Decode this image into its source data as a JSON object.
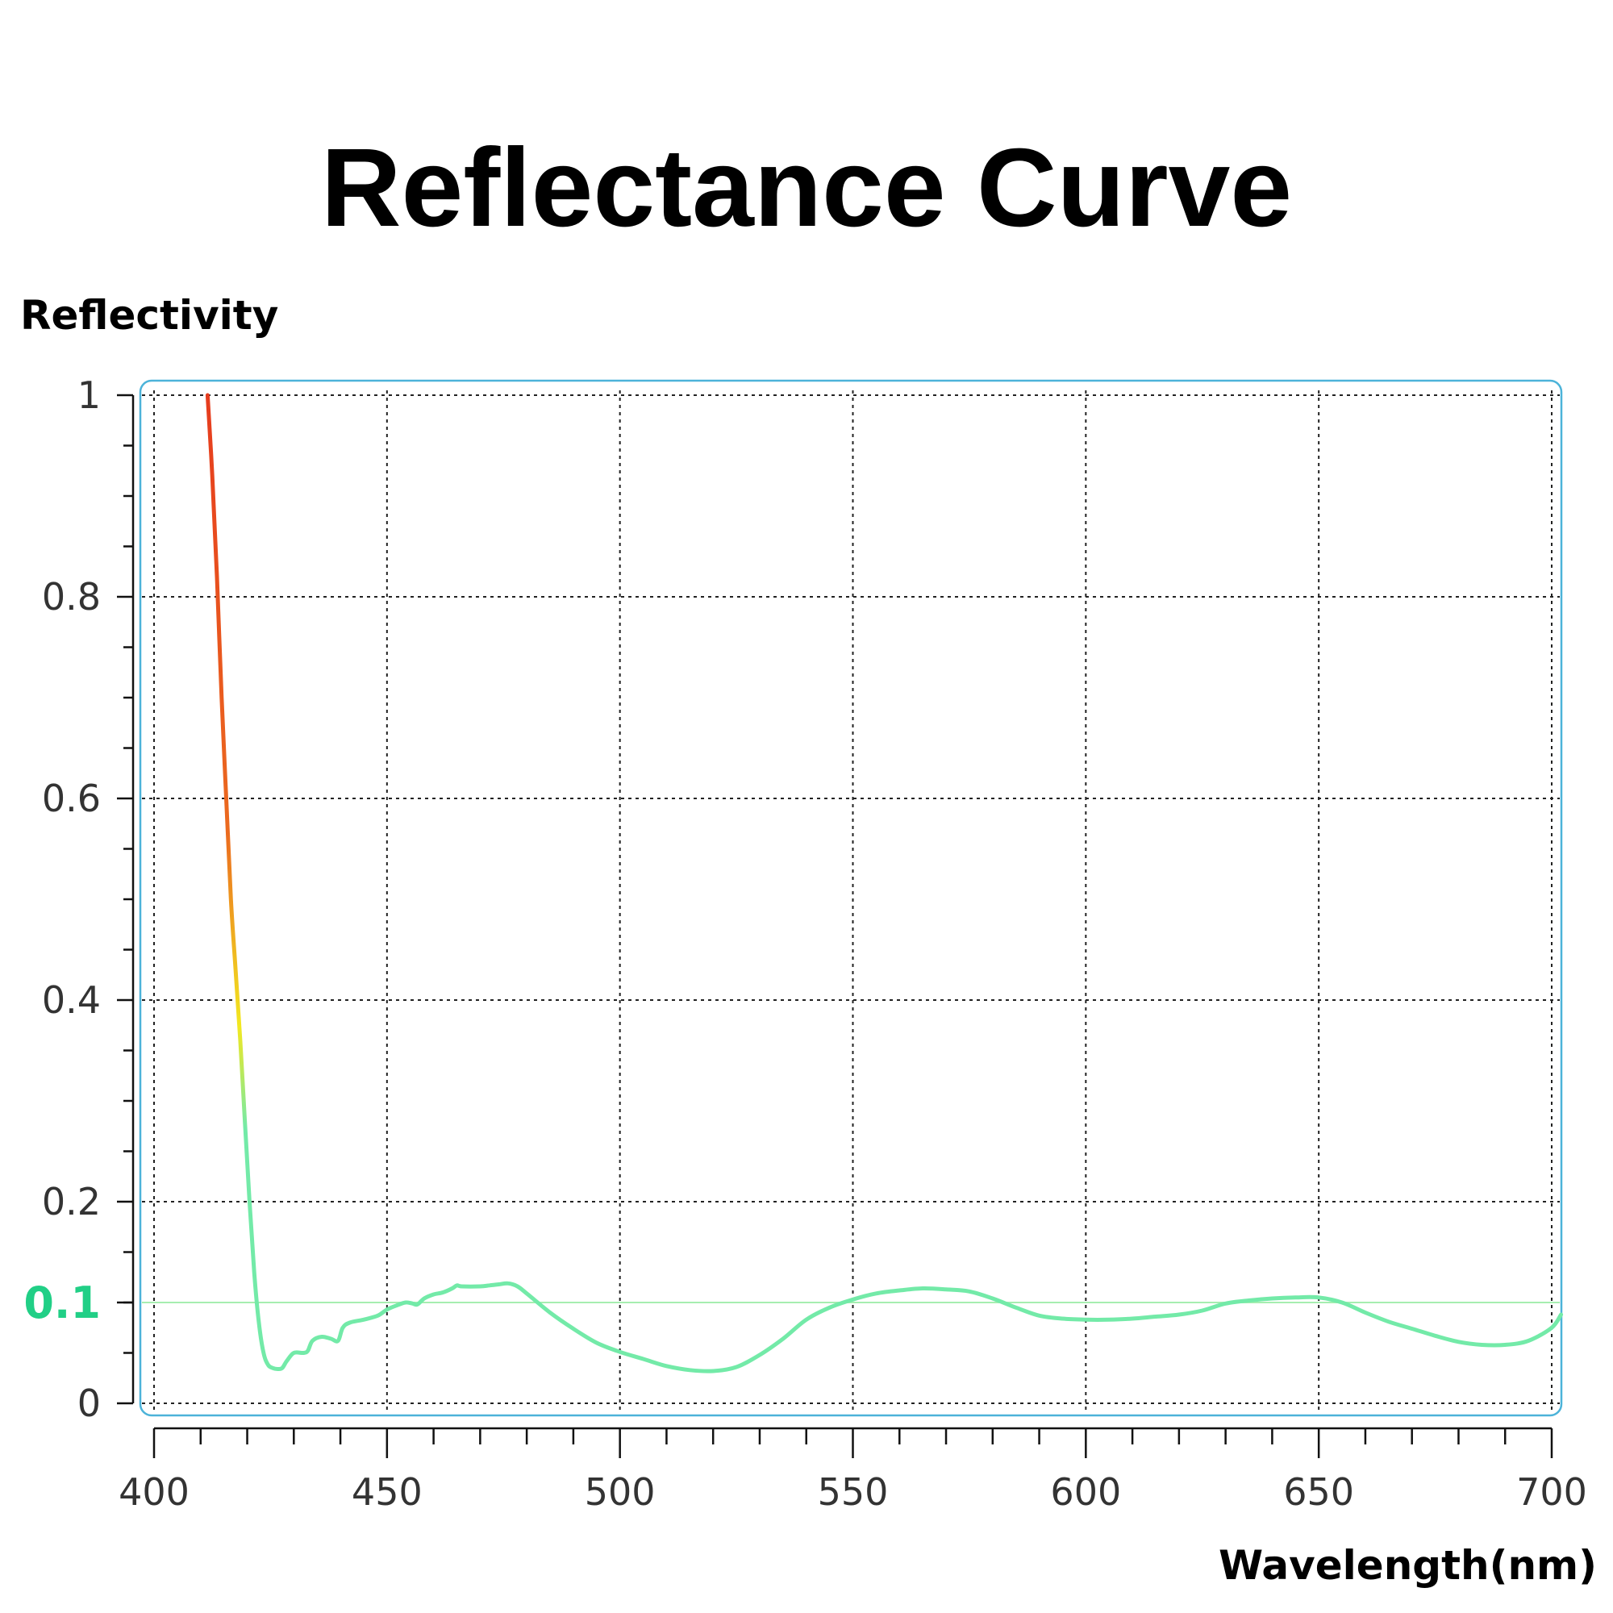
{
  "chart_data": {
    "type": "line",
    "title": "Reflectance Curve",
    "xlabel": "Wavelength(nm)",
    "ylabel": "Reflectivity",
    "xlim": [
      400,
      700
    ],
    "ylim": [
      0,
      1
    ],
    "x_ticks": [
      "400",
      "450",
      "500",
      "550",
      "600",
      "650",
      "700"
    ],
    "x_tick_values": [
      400,
      450,
      500,
      550,
      600,
      650,
      700
    ],
    "y_ticks": [
      "0",
      "0.2",
      "0.4",
      "0.6",
      "0.8",
      "1"
    ],
    "y_tick_values": [
      0,
      0.2,
      0.4,
      0.6,
      0.8,
      1
    ],
    "grid": true,
    "reference_line": {
      "label": "0.1",
      "value": 0.1,
      "color": "#a6eeb0",
      "label_color": "#21cf86"
    },
    "colors": {
      "frame": "#4cb3d9",
      "curve_high": "#e63b1e",
      "curve_mid": "#f2e820",
      "curve_low": "#73eaa8"
    },
    "series": [
      {
        "x": [
          411.5,
          412.5,
          413.5,
          414.5,
          415.5,
          416.5,
          417.5,
          418.5,
          419.5,
          420.5,
          421.5,
          422.5,
          423.5,
          424.5,
          425.5,
          426.5,
          427.5,
          428.5,
          430,
          432,
          433,
          434,
          436,
          438,
          439.5,
          440.5,
          442,
          445,
          448,
          450,
          452,
          454,
          455.5,
          456.5,
          458,
          460,
          462,
          464,
          465,
          466,
          470,
          472,
          474,
          476,
          478,
          480,
          485,
          490,
          495,
          500,
          505,
          510,
          515,
          520,
          525,
          530,
          535,
          540,
          545,
          550,
          555,
          560,
          565,
          570,
          575,
          580,
          585,
          590,
          595,
          600,
          605,
          610,
          615,
          620,
          625,
          630,
          635,
          640,
          645,
          650,
          655,
          660,
          665,
          670,
          675,
          680,
          685,
          690,
          695,
          700,
          702
        ],
        "y": [
          1.0,
          0.92,
          0.82,
          0.7,
          0.6,
          0.5,
          0.43,
          0.36,
          0.28,
          0.2,
          0.13,
          0.08,
          0.05,
          0.038,
          0.035,
          0.034,
          0.035,
          0.042,
          0.05,
          0.05,
          0.052,
          0.062,
          0.066,
          0.064,
          0.062,
          0.075,
          0.08,
          0.083,
          0.087,
          0.093,
          0.097,
          0.1,
          0.099,
          0.098,
          0.104,
          0.108,
          0.11,
          0.114,
          0.117,
          0.116,
          0.116,
          0.117,
          0.118,
          0.119,
          0.116,
          0.109,
          0.09,
          0.074,
          0.06,
          0.051,
          0.044,
          0.037,
          0.033,
          0.032,
          0.036,
          0.048,
          0.064,
          0.083,
          0.095,
          0.103,
          0.109,
          0.112,
          0.114,
          0.113,
          0.111,
          0.104,
          0.095,
          0.087,
          0.084,
          0.083,
          0.083,
          0.084,
          0.086,
          0.088,
          0.092,
          0.099,
          0.102,
          0.104,
          0.105,
          0.105,
          0.1,
          0.09,
          0.081,
          0.074,
          0.067,
          0.061,
          0.058,
          0.058,
          0.062,
          0.075,
          0.088
        ]
      }
    ]
  }
}
